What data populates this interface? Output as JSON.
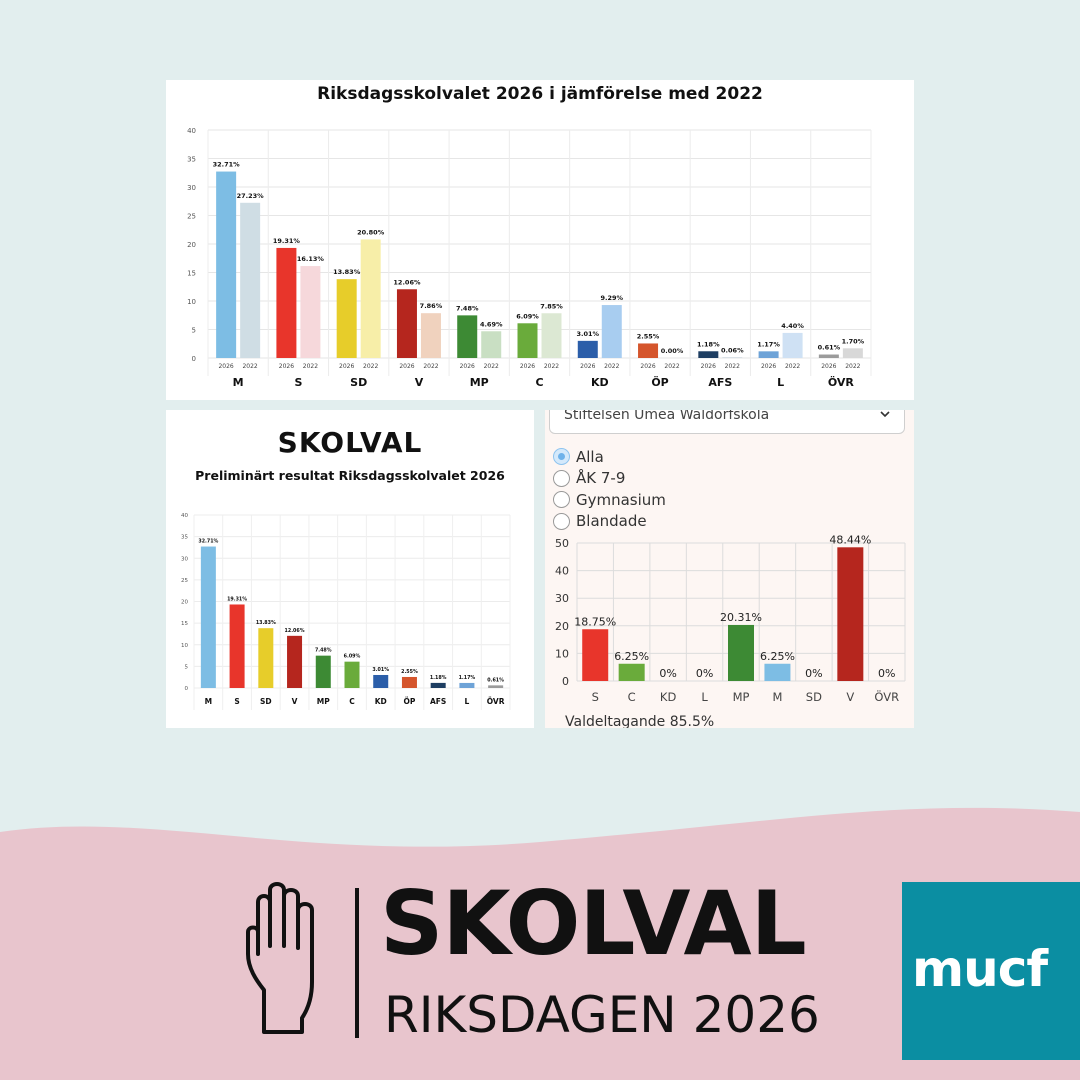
{
  "top_panel": {
    "title": "Riksdagsskolvalet 2026 i jämförelse med 2022"
  },
  "bottom_left_panel": {
    "title": "SKOLVAL",
    "subtitle": "Preliminärt resultat Riksdagsskolvalet 2026"
  },
  "bottom_right_panel": {
    "school_select": {
      "value": "Stiftelsen Umeå Waldorfskola"
    },
    "radio_options": [
      {
        "label": "Alla",
        "checked": true
      },
      {
        "label": "ÅK 7-9",
        "checked": false
      },
      {
        "label": "Gymnasium",
        "checked": false
      },
      {
        "label": "Blandade",
        "checked": false
      }
    ],
    "turnout_text": "Valdeltagande 85.5%"
  },
  "branding": {
    "name": "SKOLVAL",
    "subtitle": "RIKSDAGEN 2026",
    "logo_text": "mucf"
  },
  "chart_data": [
    {
      "type": "bar",
      "title": "Riksdagsskolvalet 2026 i jämförelse med 2022",
      "categories": [
        "M",
        "S",
        "SD",
        "V",
        "MP",
        "C",
        "KD",
        "ÖP",
        "AFS",
        "L",
        "ÖVR"
      ],
      "series": [
        {
          "name": "2026",
          "values": [
            32.71,
            19.31,
            13.83,
            12.06,
            7.48,
            6.09,
            3.01,
            2.55,
            1.18,
            1.17,
            0.61
          ],
          "labels": [
            "32.71%",
            "19.31%",
            "13.83%",
            "12.06%",
            "7.48%",
            "6.09%",
            "3.01%",
            "2.55%",
            "1.18%",
            "1.17%",
            "0.61%"
          ]
        },
        {
          "name": "2022",
          "values": [
            27.23,
            16.13,
            20.8,
            7.86,
            4.69,
            7.85,
            9.29,
            0.0,
            0.06,
            4.4,
            1.7
          ],
          "labels": [
            "27.23%",
            "16.13%",
            "20.80%",
            "7.86%",
            "4.69%",
            "7.85%",
            "9.29%",
            "0.00%",
            "0.06%",
            "4.40%",
            "1.70%"
          ]
        }
      ],
      "colors_2026": [
        "#7dbde4",
        "#e8352b",
        "#e7cd2a",
        "#b5261e",
        "#3d8a34",
        "#6aab3b",
        "#2b5ea9",
        "#d5552c",
        "#1e3e62",
        "#6ea3d7",
        "#9b9b9b"
      ],
      "colors_2022": [
        "#cfdde4",
        "#f6d8db",
        "#f7eea8",
        "#f0d2be",
        "#c9dfc3",
        "#dce8d3",
        "#a8cdf0",
        "#f2c4b0",
        "#9fb3c5",
        "#cfe1f4",
        "#d8d8d8"
      ],
      "yticks": [
        0,
        5,
        10,
        15,
        20,
        25,
        30,
        35,
        40
      ],
      "ylim": [
        0,
        40
      ]
    },
    {
      "type": "bar",
      "title": "Preliminärt resultat Riksdagsskolvalet 2026",
      "categories": [
        "M",
        "S",
        "SD",
        "V",
        "MP",
        "C",
        "KD",
        "ÖP",
        "AFS",
        "L",
        "ÖVR"
      ],
      "values": [
        32.71,
        19.31,
        13.83,
        12.06,
        7.48,
        6.09,
        3.01,
        2.55,
        1.18,
        1.17,
        0.61
      ],
      "labels": [
        "32.71%",
        "19.31%",
        "13.83%",
        "12.06%",
        "7.48%",
        "6.09%",
        "3.01%",
        "2.55%",
        "1.18%",
        "1.17%",
        "0.61%"
      ],
      "colors": [
        "#7dbde4",
        "#e8352b",
        "#e7cd2a",
        "#b5261e",
        "#3d8a34",
        "#6aab3b",
        "#2b5ea9",
        "#d5552c",
        "#1e3e62",
        "#6ea3d7",
        "#9b9b9b"
      ],
      "yticks": [
        0,
        5,
        10,
        15,
        20,
        25,
        30,
        35,
        40
      ],
      "ylim": [
        0,
        40
      ]
    },
    {
      "type": "bar",
      "categories": [
        "S",
        "C",
        "KD",
        "L",
        "MP",
        "M",
        "SD",
        "V",
        "ÖVR"
      ],
      "values": [
        18.75,
        6.25,
        0,
        0,
        20.31,
        6.25,
        0,
        48.44,
        0
      ],
      "labels": [
        "18.75%",
        "6.25%",
        "0%",
        "0%",
        "20.31%",
        "6.25%",
        "0%",
        "48.44%",
        "0%"
      ],
      "colors": [
        "#e8352b",
        "#6aab3b",
        "#2b5ea9",
        "#6ea3d7",
        "#3d8a34",
        "#7dbde4",
        "#e7cd2a",
        "#b5261e",
        "#9b9b9b"
      ],
      "yticks": [
        0,
        10,
        20,
        30,
        40,
        50
      ],
      "ylim": [
        0,
        50
      ]
    }
  ]
}
